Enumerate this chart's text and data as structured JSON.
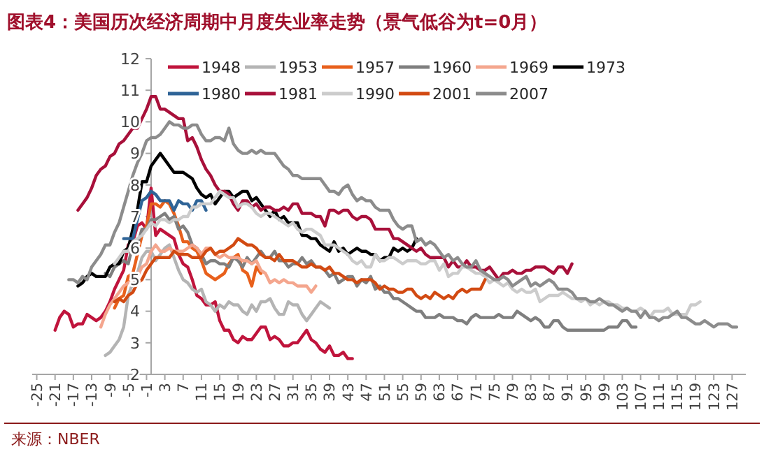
{
  "chart_data": {
    "type": "line",
    "title": "图表4：美国历次经济周期中月度失业率走势（景气低谷为t=0月）",
    "annotations": [
      "来源：NBER"
    ],
    "xlim": [
      -26,
      130
    ],
    "xticks": [
      -25,
      -21,
      -17,
      -13,
      -9,
      -5,
      -1,
      3,
      7,
      11,
      15,
      19,
      23,
      27,
      31,
      35,
      39,
      43,
      47,
      51,
      55,
      59,
      63,
      67,
      71,
      75,
      79,
      83,
      87,
      91,
      95,
      99,
      103,
      107,
      111,
      115,
      119,
      123,
      127
    ],
    "ylim": [
      2,
      12
    ],
    "yticks": [
      2,
      3,
      4,
      5,
      6,
      7,
      8,
      9,
      10,
      11,
      12
    ],
    "legend": "top",
    "line_style": "solid",
    "marker": "none",
    "series": [
      {
        "name": "1948",
        "color": "#c0143c",
        "x": [
          -21,
          -20,
          -19,
          -18,
          -17,
          -16,
          -15,
          -14,
          -13,
          -12,
          -11,
          -10,
          -9,
          -8,
          -7,
          -6,
          -5,
          -4,
          -3,
          -2,
          -1,
          0,
          1,
          2,
          3,
          4,
          5,
          6,
          7,
          8,
          9,
          10,
          11,
          12,
          13,
          14,
          15,
          16,
          17,
          18,
          19,
          20,
          21,
          22,
          23,
          24,
          25,
          26,
          27,
          28,
          29,
          30,
          31,
          32,
          33,
          34,
          35,
          36,
          37,
          38,
          39,
          40,
          41,
          42,
          43,
          44
        ],
        "values": [
          3.4,
          3.8,
          4.0,
          3.9,
          3.5,
          3.6,
          3.6,
          3.9,
          3.8,
          3.7,
          3.8,
          4.0,
          4.3,
          4.7,
          5.0,
          5.3,
          6.1,
          6.2,
          6.7,
          6.8,
          6.6,
          7.9,
          6.4,
          6.6,
          6.5,
          6.4,
          6.3,
          5.8,
          5.5,
          5.4,
          5.0,
          4.5,
          4.4,
          4.2,
          4.2,
          4.3,
          3.7,
          3.4,
          3.4,
          3.1,
          3.0,
          3.2,
          3.1,
          3.1,
          3.3,
          3.5,
          3.5,
          3.1,
          3.2,
          3.1,
          2.9,
          2.9,
          3.0,
          3.0,
          3.2,
          3.4,
          3.1,
          3.0,
          2.8,
          2.7,
          2.9,
          2.6,
          2.6,
          2.7,
          2.5,
          2.5
        ]
      },
      {
        "name": "1953",
        "color": "#b4b4b4",
        "x": [
          -10,
          -9,
          -8,
          -7,
          -6,
          -5,
          -4,
          -3,
          -2,
          -1,
          0,
          1,
          2,
          3,
          4,
          5,
          6,
          7,
          8,
          9,
          10,
          11,
          12,
          13,
          14,
          15,
          16,
          17,
          18,
          19,
          20,
          21,
          22,
          23,
          24,
          25,
          26,
          27,
          28,
          29,
          30,
          31,
          32,
          33,
          34,
          35,
          36,
          37,
          38,
          39
        ],
        "values": [
          2.6,
          2.7,
          2.9,
          3.1,
          3.5,
          4.5,
          4.9,
          5.2,
          5.7,
          5.9,
          5.9,
          5.6,
          5.8,
          6.0,
          6.1,
          5.7,
          5.3,
          5.0,
          4.9,
          4.7,
          4.6,
          4.7,
          4.3,
          4.2,
          4.0,
          4.2,
          4.1,
          4.3,
          4.2,
          4.2,
          4.0,
          3.9,
          4.2,
          4.0,
          4.3,
          4.3,
          4.4,
          4.1,
          3.9,
          3.9,
          4.3,
          4.2,
          4.2,
          3.9,
          3.7,
          3.9,
          4.1,
          4.3,
          4.2,
          4.1
        ]
      },
      {
        "name": "1957",
        "color": "#e8601c",
        "x": [
          -8,
          -7,
          -6,
          -5,
          -4,
          -3,
          -2,
          -1,
          0,
          1,
          2,
          3,
          4,
          5,
          6,
          7,
          8,
          9,
          10,
          11,
          12,
          13,
          14,
          15,
          16,
          17,
          18,
          19,
          20,
          21,
          22,
          23,
          24
        ],
        "values": [
          4.1,
          4.4,
          4.5,
          5.1,
          5.2,
          5.8,
          6.4,
          6.7,
          7.4,
          7.4,
          7.3,
          7.5,
          7.4,
          7.1,
          6.7,
          6.2,
          6.2,
          6.0,
          5.9,
          5.6,
          5.2,
          5.1,
          5.0,
          5.1,
          5.2,
          5.5,
          5.7,
          5.8,
          5.3,
          5.2,
          4.8,
          5.4,
          5.2
        ]
      },
      {
        "name": "1960",
        "color": "#7f7f7f",
        "x": [
          -10,
          -9,
          -8,
          -7,
          -6,
          -5,
          -4,
          -3,
          -2,
          -1,
          0,
          1,
          2,
          3,
          4,
          5,
          6,
          7,
          8,
          9,
          10,
          11,
          12,
          13,
          14,
          15,
          16,
          17,
          18,
          19,
          20,
          21,
          22,
          23,
          24,
          25,
          26,
          27,
          28,
          29,
          30,
          31,
          32,
          33,
          34,
          35,
          36,
          37,
          38,
          39,
          40,
          41,
          42,
          43,
          44,
          45,
          46,
          47,
          48,
          49,
          50,
          51,
          52,
          53,
          54,
          55,
          56,
          57,
          58,
          59,
          60,
          61,
          62,
          63,
          64,
          65,
          66,
          67,
          68,
          69,
          70,
          71,
          72,
          73,
          74,
          75,
          76,
          77,
          78,
          79,
          80,
          81,
          82,
          83,
          84,
          85,
          86,
          87,
          88,
          89,
          90,
          91,
          92,
          93,
          94,
          95,
          96,
          97,
          98,
          99,
          100,
          101,
          102,
          103,
          104,
          105,
          106
        ],
        "values": [
          5.2,
          5.1,
          5.4,
          5.5,
          5.6,
          5.5,
          6.1,
          6.1,
          6.6,
          6.6,
          6.9,
          6.9,
          7.0,
          7.1,
          6.9,
          7.0,
          6.6,
          6.7,
          6.5,
          6.1,
          6.0,
          5.8,
          5.5,
          5.6,
          5.6,
          5.5,
          5.5,
          5.4,
          5.7,
          5.6,
          5.4,
          5.7,
          5.5,
          5.7,
          5.9,
          5.7,
          5.7,
          5.9,
          5.6,
          5.6,
          5.4,
          5.5,
          5.5,
          5.7,
          5.5,
          5.6,
          5.4,
          5.4,
          5.3,
          5.1,
          5.2,
          4.9,
          5.0,
          5.1,
          5.1,
          4.8,
          5.0,
          4.9,
          5.1,
          4.7,
          4.8,
          4.6,
          4.6,
          4.4,
          4.4,
          4.3,
          4.2,
          4.1,
          4.0,
          4.0,
          3.8,
          3.8,
          3.8,
          3.9,
          3.8,
          3.8,
          3.8,
          3.7,
          3.7,
          3.6,
          3.8,
          3.9,
          3.8,
          3.8,
          3.8,
          3.8,
          3.9,
          3.8,
          3.8,
          3.8,
          4.0,
          3.9,
          3.8,
          3.7,
          3.8,
          3.7,
          3.5,
          3.5,
          3.7,
          3.7,
          3.5,
          3.4,
          3.4,
          3.4,
          3.4,
          3.4,
          3.4,
          3.4,
          3.4,
          3.4,
          3.5,
          3.5,
          3.5,
          3.7,
          3.7,
          3.5,
          3.5
        ]
      },
      {
        "name": "1969",
        "color": "#f4a68e",
        "x": [
          -11,
          -10,
          -9,
          -8,
          -7,
          -6,
          -5,
          -4,
          -3,
          -2,
          -1,
          0,
          1,
          2,
          3,
          4,
          5,
          6,
          7,
          8,
          9,
          10,
          11,
          12,
          13,
          14,
          15,
          16,
          17,
          18,
          19,
          20,
          21,
          22,
          23,
          24,
          25,
          26,
          27,
          28,
          29,
          30,
          31,
          32,
          33,
          34,
          35,
          36
        ],
        "values": [
          3.5,
          3.9,
          4.2,
          4.4,
          4.6,
          4.8,
          4.9,
          5.0,
          5.1,
          5.4,
          5.5,
          5.9,
          6.1,
          5.9,
          5.9,
          6.0,
          5.9,
          5.9,
          5.9,
          6.0,
          6.1,
          6.0,
          5.8,
          6.0,
          6.0,
          5.8,
          5.7,
          5.8,
          5.7,
          5.7,
          5.7,
          5.6,
          5.6,
          5.5,
          5.6,
          5.3,
          5.2,
          4.9,
          5.0,
          4.9,
          5.0,
          4.9,
          4.9,
          4.8,
          4.8,
          4.8,
          4.6,
          4.8
        ]
      },
      {
        "name": "1973",
        "color": "#000000",
        "x": [
          -16,
          -15,
          -14,
          -13,
          -12,
          -11,
          -10,
          -9,
          -8,
          -7,
          -6,
          -5,
          -4,
          -3,
          -2,
          -1,
          0,
          1,
          2,
          3,
          4,
          5,
          6,
          7,
          8,
          9,
          10,
          11,
          12,
          13,
          14,
          15,
          16,
          17,
          18,
          19,
          20,
          21,
          22,
          23,
          24,
          25,
          26,
          27,
          28,
          29,
          30,
          31,
          32,
          33,
          34,
          35,
          36,
          37,
          38,
          39,
          40,
          41,
          42,
          43,
          44,
          45,
          46,
          47,
          48,
          49,
          50,
          51,
          52,
          53,
          54,
          55,
          56,
          57,
          58
        ],
        "values": [
          4.8,
          4.9,
          5.1,
          5.2,
          5.1,
          5.1,
          5.1,
          5.4,
          5.5,
          5.5,
          5.9,
          6.0,
          6.6,
          7.2,
          8.1,
          8.1,
          8.6,
          8.8,
          9.0,
          8.8,
          8.6,
          8.4,
          8.4,
          8.4,
          8.3,
          8.2,
          7.9,
          7.7,
          7.6,
          7.7,
          7.4,
          7.6,
          7.8,
          7.8,
          7.6,
          7.7,
          7.8,
          7.8,
          7.5,
          7.6,
          7.4,
          7.2,
          7.0,
          7.2,
          6.9,
          7.0,
          6.8,
          6.8,
          6.8,
          6.4,
          6.4,
          6.3,
          6.3,
          6.1,
          6.0,
          5.9,
          6.2,
          5.9,
          6.0,
          5.8,
          5.9,
          6.0,
          5.9,
          5.9,
          5.8,
          5.8,
          5.6,
          5.7,
          5.7,
          6.0,
          5.9,
          6.0,
          5.9,
          6.0,
          6.3
        ]
      },
      {
        "name": "1980",
        "color": "#2f6497",
        "x": [
          -6,
          -5,
          -4,
          -3,
          -2,
          -1,
          0,
          1,
          2,
          3,
          4,
          5,
          6,
          7,
          8,
          9,
          10,
          11,
          12
        ],
        "values": [
          6.3,
          6.3,
          6.3,
          6.9,
          7.5,
          7.6,
          7.8,
          7.7,
          7.5,
          7.5,
          7.5,
          7.2,
          7.5,
          7.4,
          7.4,
          7.2,
          7.5,
          7.5,
          7.2
        ]
      },
      {
        "name": "1981",
        "color": "#a8103a",
        "x": [
          -16,
          -15,
          -14,
          -13,
          -12,
          -11,
          -10,
          -9,
          -8,
          -7,
          -6,
          -5,
          -4,
          -3,
          -2,
          -1,
          0,
          1,
          2,
          3,
          4,
          5,
          6,
          7,
          8,
          9,
          10,
          11,
          12,
          13,
          14,
          15,
          16,
          17,
          18,
          19,
          20,
          21,
          22,
          23,
          24,
          25,
          26,
          27,
          28,
          29,
          30,
          31,
          32,
          33,
          34,
          35,
          36,
          37,
          38,
          39,
          40,
          41,
          42,
          43,
          44,
          45,
          46,
          47,
          48,
          49,
          50,
          51,
          52,
          53,
          54,
          55,
          56,
          57,
          58,
          59,
          60,
          61,
          62,
          63,
          64,
          65,
          66,
          67,
          68,
          69,
          70,
          71,
          72,
          73,
          74,
          75,
          76,
          77,
          78,
          79,
          80,
          81,
          82,
          83,
          84,
          85,
          86,
          87,
          88,
          89,
          90,
          91,
          92
        ],
        "values": [
          7.2,
          7.4,
          7.6,
          7.9,
          8.3,
          8.5,
          8.6,
          8.9,
          9.0,
          9.3,
          9.4,
          9.6,
          9.8,
          9.8,
          10.1,
          10.4,
          10.8,
          10.8,
          10.4,
          10.4,
          10.3,
          10.2,
          10.1,
          10.1,
          9.4,
          9.5,
          9.2,
          8.8,
          8.5,
          8.3,
          8.0,
          7.8,
          7.8,
          7.7,
          7.4,
          7.2,
          7.5,
          7.5,
          7.3,
          7.4,
          7.2,
          7.3,
          7.3,
          7.2,
          7.2,
          7.3,
          7.2,
          7.4,
          7.4,
          7.1,
          7.1,
          7.1,
          7.0,
          7.0,
          6.7,
          7.2,
          7.2,
          7.1,
          7.2,
          7.2,
          7.0,
          6.9,
          7.0,
          7.0,
          6.9,
          6.6,
          6.6,
          6.6,
          6.6,
          6.3,
          6.3,
          6.2,
          6.1,
          6.0,
          5.9,
          6.0,
          5.8,
          5.7,
          5.7,
          5.7,
          5.7,
          5.4,
          5.6,
          5.4,
          5.4,
          5.6,
          5.4,
          5.4,
          5.3,
          5.3,
          5.4,
          5.2,
          5.0,
          5.2,
          5.2,
          5.3,
          5.2,
          5.2,
          5.3,
          5.3,
          5.4,
          5.4,
          5.4,
          5.3,
          5.2,
          5.4,
          5.4,
          5.2,
          5.5
        ]
      },
      {
        "name": "1990",
        "color": "#cccccc",
        "x": [
          -8,
          -7,
          -6,
          -5,
          -4,
          -3,
          -2,
          -1,
          0,
          1,
          2,
          3,
          4,
          5,
          6,
          7,
          8,
          9,
          10,
          11,
          12,
          13,
          14,
          15,
          16,
          17,
          18,
          19,
          20,
          21,
          22,
          23,
          24,
          25,
          26,
          27,
          28,
          29,
          30,
          31,
          32,
          33,
          34,
          35,
          36,
          37,
          38,
          39,
          40,
          41,
          42,
          43,
          44,
          45,
          46,
          47,
          48,
          49,
          50,
          51,
          52,
          53,
          54,
          55,
          56,
          57,
          58,
          59,
          60,
          61,
          62,
          63,
          64,
          65,
          66,
          67,
          68,
          69,
          70,
          71,
          72,
          73,
          74,
          75,
          76,
          77,
          78,
          79,
          80,
          81,
          82,
          83,
          84,
          85,
          86,
          87,
          88,
          89,
          90,
          91,
          92,
          93,
          94,
          95,
          96,
          97,
          98,
          99,
          100,
          101,
          102,
          103,
          104,
          105,
          106,
          107,
          108,
          109,
          110,
          111,
          112,
          113,
          114,
          115,
          116,
          117,
          118,
          119,
          120
        ],
        "values": [
          5.5,
          5.7,
          5.9,
          5.9,
          6.2,
          6.3,
          6.4,
          6.6,
          6.8,
          6.7,
          6.9,
          6.9,
          6.8,
          6.9,
          6.9,
          7.0,
          7.0,
          7.3,
          7.3,
          7.4,
          7.4,
          7.4,
          7.6,
          7.8,
          7.7,
          7.6,
          7.6,
          7.3,
          7.4,
          7.4,
          7.3,
          7.1,
          7.0,
          7.1,
          7.1,
          7.0,
          6.9,
          6.8,
          6.7,
          6.8,
          6.6,
          6.5,
          6.6,
          6.6,
          6.5,
          6.4,
          6.1,
          6.1,
          6.1,
          6.0,
          5.9,
          5.8,
          5.6,
          5.5,
          5.6,
          5.4,
          5.4,
          5.8,
          5.6,
          5.6,
          5.7,
          5.7,
          5.6,
          5.5,
          5.6,
          5.6,
          5.6,
          5.5,
          5.5,
          5.6,
          5.6,
          5.3,
          5.5,
          5.1,
          5.2,
          5.2,
          5.4,
          5.4,
          5.3,
          5.2,
          5.2,
          5.1,
          4.9,
          5.0,
          4.9,
          4.8,
          4.9,
          4.7,
          4.6,
          4.7,
          4.6,
          4.6,
          4.7,
          4.3,
          4.4,
          4.5,
          4.5,
          4.5,
          4.6,
          4.5,
          4.4,
          4.4,
          4.3,
          4.4,
          4.2,
          4.3,
          4.2,
          4.3,
          4.3,
          4.2,
          4.2,
          4.1,
          4.1,
          4.0,
          4.0,
          4.1,
          4.0,
          3.8,
          4.0,
          4.0,
          4.0,
          4.1,
          3.9,
          3.9,
          3.9,
          3.9,
          4.2,
          4.2,
          4.3
        ]
      },
      {
        "name": "2001",
        "color": "#d24a12",
        "x": [
          -8,
          -7,
          -6,
          -5,
          -4,
          -3,
          -2,
          -1,
          0,
          1,
          2,
          3,
          4,
          5,
          6,
          7,
          8,
          9,
          10,
          11,
          12,
          13,
          14,
          15,
          16,
          17,
          18,
          19,
          20,
          21,
          22,
          23,
          24,
          25,
          26,
          27,
          28,
          29,
          30,
          31,
          32,
          33,
          34,
          35,
          36,
          37,
          38,
          39,
          40,
          41,
          42,
          43,
          44,
          45,
          46,
          47,
          48,
          49,
          50,
          51,
          52,
          53,
          54,
          55,
          56,
          57,
          58,
          59,
          60,
          61,
          62,
          63,
          64,
          65,
          66,
          67,
          68,
          69,
          70,
          71,
          72,
          73
        ],
        "values": [
          4.3,
          4.4,
          4.3,
          4.5,
          4.6,
          4.9,
          5.0,
          5.3,
          5.5,
          5.7,
          5.7,
          5.7,
          5.7,
          5.9,
          5.8,
          5.8,
          5.8,
          5.7,
          5.7,
          5.7,
          5.9,
          6.0,
          5.8,
          5.9,
          5.9,
          6.0,
          6.1,
          6.3,
          6.2,
          6.1,
          6.1,
          6.0,
          5.8,
          5.7,
          5.7,
          5.6,
          5.8,
          5.6,
          5.6,
          5.6,
          5.5,
          5.4,
          5.4,
          5.5,
          5.4,
          5.4,
          5.3,
          5.4,
          5.2,
          5.2,
          5.1,
          5.0,
          5.0,
          4.9,
          5.0,
          5.0,
          5.0,
          4.9,
          4.7,
          4.8,
          4.7,
          4.7,
          4.6,
          4.6,
          4.7,
          4.7,
          4.5,
          4.4,
          4.5,
          4.4,
          4.6,
          4.5,
          4.4,
          4.5,
          4.4,
          4.6,
          4.7,
          4.6,
          4.7,
          4.7,
          4.7,
          5.0
        ]
      },
      {
        "name": "2007",
        "color": "#8c8c8c",
        "x": [
          -18,
          -17,
          -16,
          -15,
          -14,
          -13,
          -12,
          -11,
          -10,
          -9,
          -8,
          -7,
          -6,
          -5,
          -4,
          -3,
          -2,
          -1,
          0,
          1,
          2,
          3,
          4,
          5,
          6,
          7,
          8,
          9,
          10,
          11,
          12,
          13,
          14,
          15,
          16,
          17,
          18,
          19,
          20,
          21,
          22,
          23,
          24,
          25,
          26,
          27,
          28,
          29,
          30,
          31,
          32,
          33,
          34,
          35,
          36,
          37,
          38,
          39,
          40,
          41,
          42,
          43,
          44,
          45,
          46,
          47,
          48,
          49,
          50,
          51,
          52,
          53,
          54,
          55,
          56,
          57,
          58,
          59,
          60,
          61,
          62,
          63,
          64,
          65,
          66,
          67,
          68,
          69,
          70,
          71,
          72,
          73,
          74,
          75,
          76,
          77,
          78,
          79,
          80,
          81,
          82,
          83,
          84,
          85,
          86,
          87,
          88,
          89,
          90,
          91,
          92,
          93,
          94,
          95,
          96,
          97,
          98,
          99,
          100,
          101,
          102,
          103,
          104,
          105,
          106,
          107,
          108,
          109,
          110,
          111,
          112,
          113,
          114,
          115,
          116,
          117,
          118,
          119,
          120,
          121,
          122,
          123,
          124,
          125,
          126,
          127,
          128
        ],
        "values": [
          5.0,
          5.0,
          4.9,
          5.1,
          5.0,
          5.4,
          5.6,
          5.8,
          6.1,
          6.1,
          6.5,
          6.8,
          7.3,
          7.8,
          8.3,
          8.7,
          9.0,
          9.4,
          9.5,
          9.5,
          9.6,
          9.8,
          10.0,
          9.9,
          9.9,
          9.8,
          9.8,
          9.9,
          9.9,
          9.6,
          9.4,
          9.4,
          9.5,
          9.5,
          9.4,
          9.8,
          9.3,
          9.1,
          9.0,
          9.0,
          9.1,
          9.0,
          9.1,
          9.0,
          9.0,
          9.0,
          8.8,
          8.6,
          8.5,
          8.3,
          8.3,
          8.2,
          8.2,
          8.2,
          8.2,
          8.2,
          8.0,
          7.8,
          7.8,
          7.7,
          7.9,
          8.0,
          7.7,
          7.5,
          7.6,
          7.5,
          7.5,
          7.3,
          7.2,
          7.2,
          7.2,
          6.9,
          6.7,
          6.6,
          6.7,
          6.7,
          6.2,
          6.3,
          6.1,
          6.2,
          6.1,
          5.9,
          5.7,
          5.8,
          5.6,
          5.7,
          5.5,
          5.4,
          5.4,
          5.6,
          5.3,
          5.2,
          5.1,
          5.0,
          5.0,
          5.1,
          5.0,
          4.8,
          4.9,
          5.0,
          5.1,
          4.8,
          4.9,
          4.8,
          4.9,
          5.0,
          4.9,
          4.7,
          4.7,
          4.7,
          4.6,
          4.4,
          4.4,
          4.4,
          4.3,
          4.3,
          4.4,
          4.3,
          4.2,
          4.2,
          4.1,
          4.0,
          4.1,
          4.0,
          4.0,
          3.8,
          4.0,
          3.8,
          3.8,
          3.7,
          3.8,
          3.8,
          3.9,
          4.0,
          3.8,
          3.8,
          3.7,
          3.6,
          3.6,
          3.7,
          3.6,
          3.5,
          3.6,
          3.6,
          3.6,
          3.5,
          3.5
        ]
      }
    ]
  }
}
